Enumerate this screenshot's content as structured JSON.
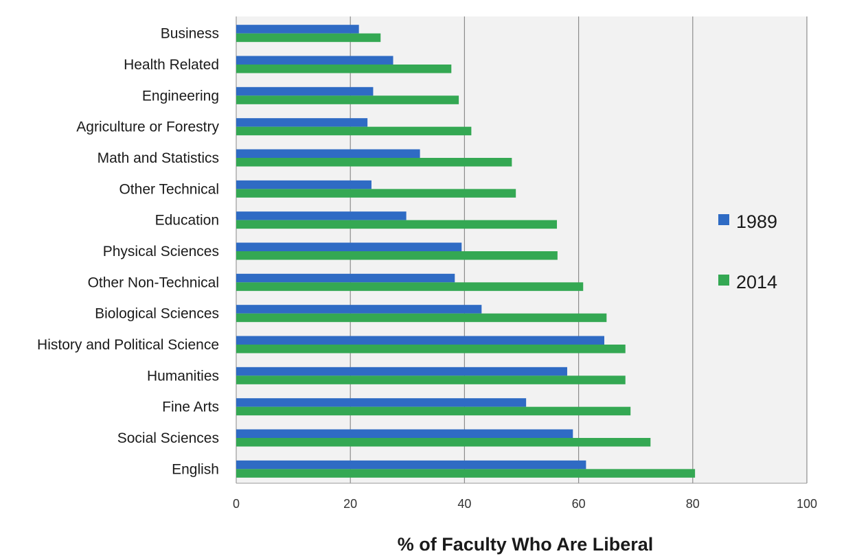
{
  "chart_data": {
    "type": "bar",
    "orientation": "horizontal",
    "categories": [
      "Business",
      "Health Related",
      "Engineering",
      "Agriculture or Forestry",
      "Math and Statistics",
      "Other Technical",
      "Education",
      "Physical Sciences",
      "Other Non-Technical",
      "Biological Sciences",
      "History and Political Science",
      "Humanities",
      "Fine Arts",
      "Social Sciences",
      "English"
    ],
    "series": [
      {
        "name": "1989",
        "color": "#2f6bc4",
        "values": [
          21.5,
          27.5,
          24,
          23,
          32.2,
          23.7,
          29.8,
          39.5,
          38.3,
          43,
          64.5,
          58,
          50.8,
          59,
          61.3
        ]
      },
      {
        "name": "2014",
        "color": "#34a853",
        "values": [
          25.3,
          37.7,
          39,
          41.2,
          48.3,
          49,
          56.2,
          56.3,
          60.8,
          64.9,
          68.2,
          68.2,
          69.1,
          72.6,
          80.4
        ]
      }
    ],
    "xlabel": "% of Faculty Who Are Liberal",
    "xlim": [
      0,
      100
    ],
    "xticks": [
      0,
      20,
      40,
      60,
      80,
      100
    ],
    "grid": true,
    "legend_position": "right"
  }
}
